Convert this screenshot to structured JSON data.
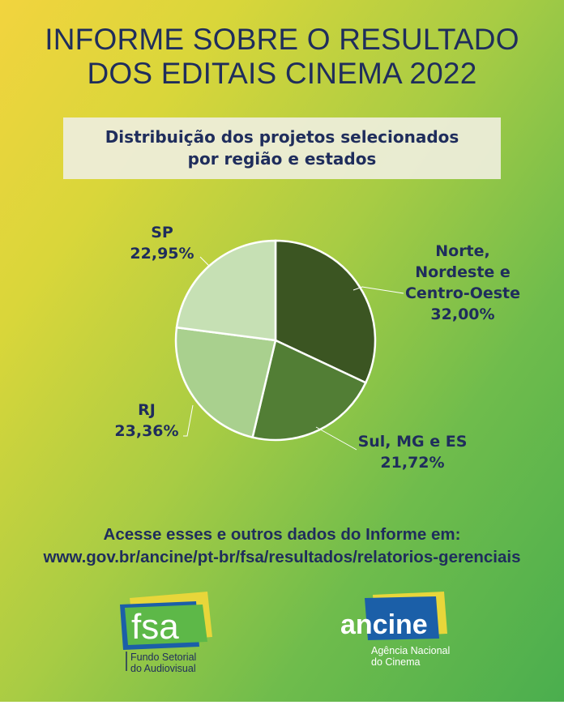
{
  "header": {
    "title_line1": "INFORME SOBRE O RESULTADO",
    "title_line2": "DOS EDITAIS CINEMA 2022"
  },
  "subtitle": {
    "line1": "Distribuição dos projetos selecionados",
    "line2": "por região e estados"
  },
  "chart_data": {
    "type": "pie",
    "title": "Distribuição dos projetos selecionados por região e estados",
    "categories": [
      "Norte, Nordeste e Centro-Oeste",
      "Sul, MG e ES",
      "RJ",
      "SP"
    ],
    "values": [
      32.0,
      21.72,
      23.36,
      22.95
    ],
    "unit": "%",
    "colors": [
      "#3b5522",
      "#527e35",
      "#a9d08e",
      "#c6e0b4"
    ],
    "start_angle": "12 o'clock, clockwise",
    "labels": [
      {
        "name_lines": [
          "Norte,",
          "Nordeste e",
          "Centro-Oeste"
        ],
        "value": "32,00%"
      },
      {
        "name_lines": [
          "Sul, MG e ES"
        ],
        "value": "21,72%"
      },
      {
        "name_lines": [
          "RJ"
        ],
        "value": "23,36%"
      },
      {
        "name_lines": [
          "SP"
        ],
        "value": "22,95%"
      }
    ],
    "legend": "none (direct labels with leader lines)"
  },
  "footer": {
    "line1": "Acesse esses e outros dados do Informe em:",
    "line2": "www.gov.br/ancine/pt-br/fsa/resultados/relatorios-gerenciais"
  },
  "logos": {
    "fsa": {
      "wordmark": "fsa",
      "caption_line1": "Fundo Setorial",
      "caption_line2": "do Audiovisual"
    },
    "ancine": {
      "wordmark": "ancine",
      "caption_line1": "Agência Nacional",
      "caption_line2": "do Cinema"
    }
  },
  "colors": {
    "text_navy": "#1f2d5c",
    "bg_yellow": "#f2d43e",
    "bg_green": "#4aae4e"
  }
}
